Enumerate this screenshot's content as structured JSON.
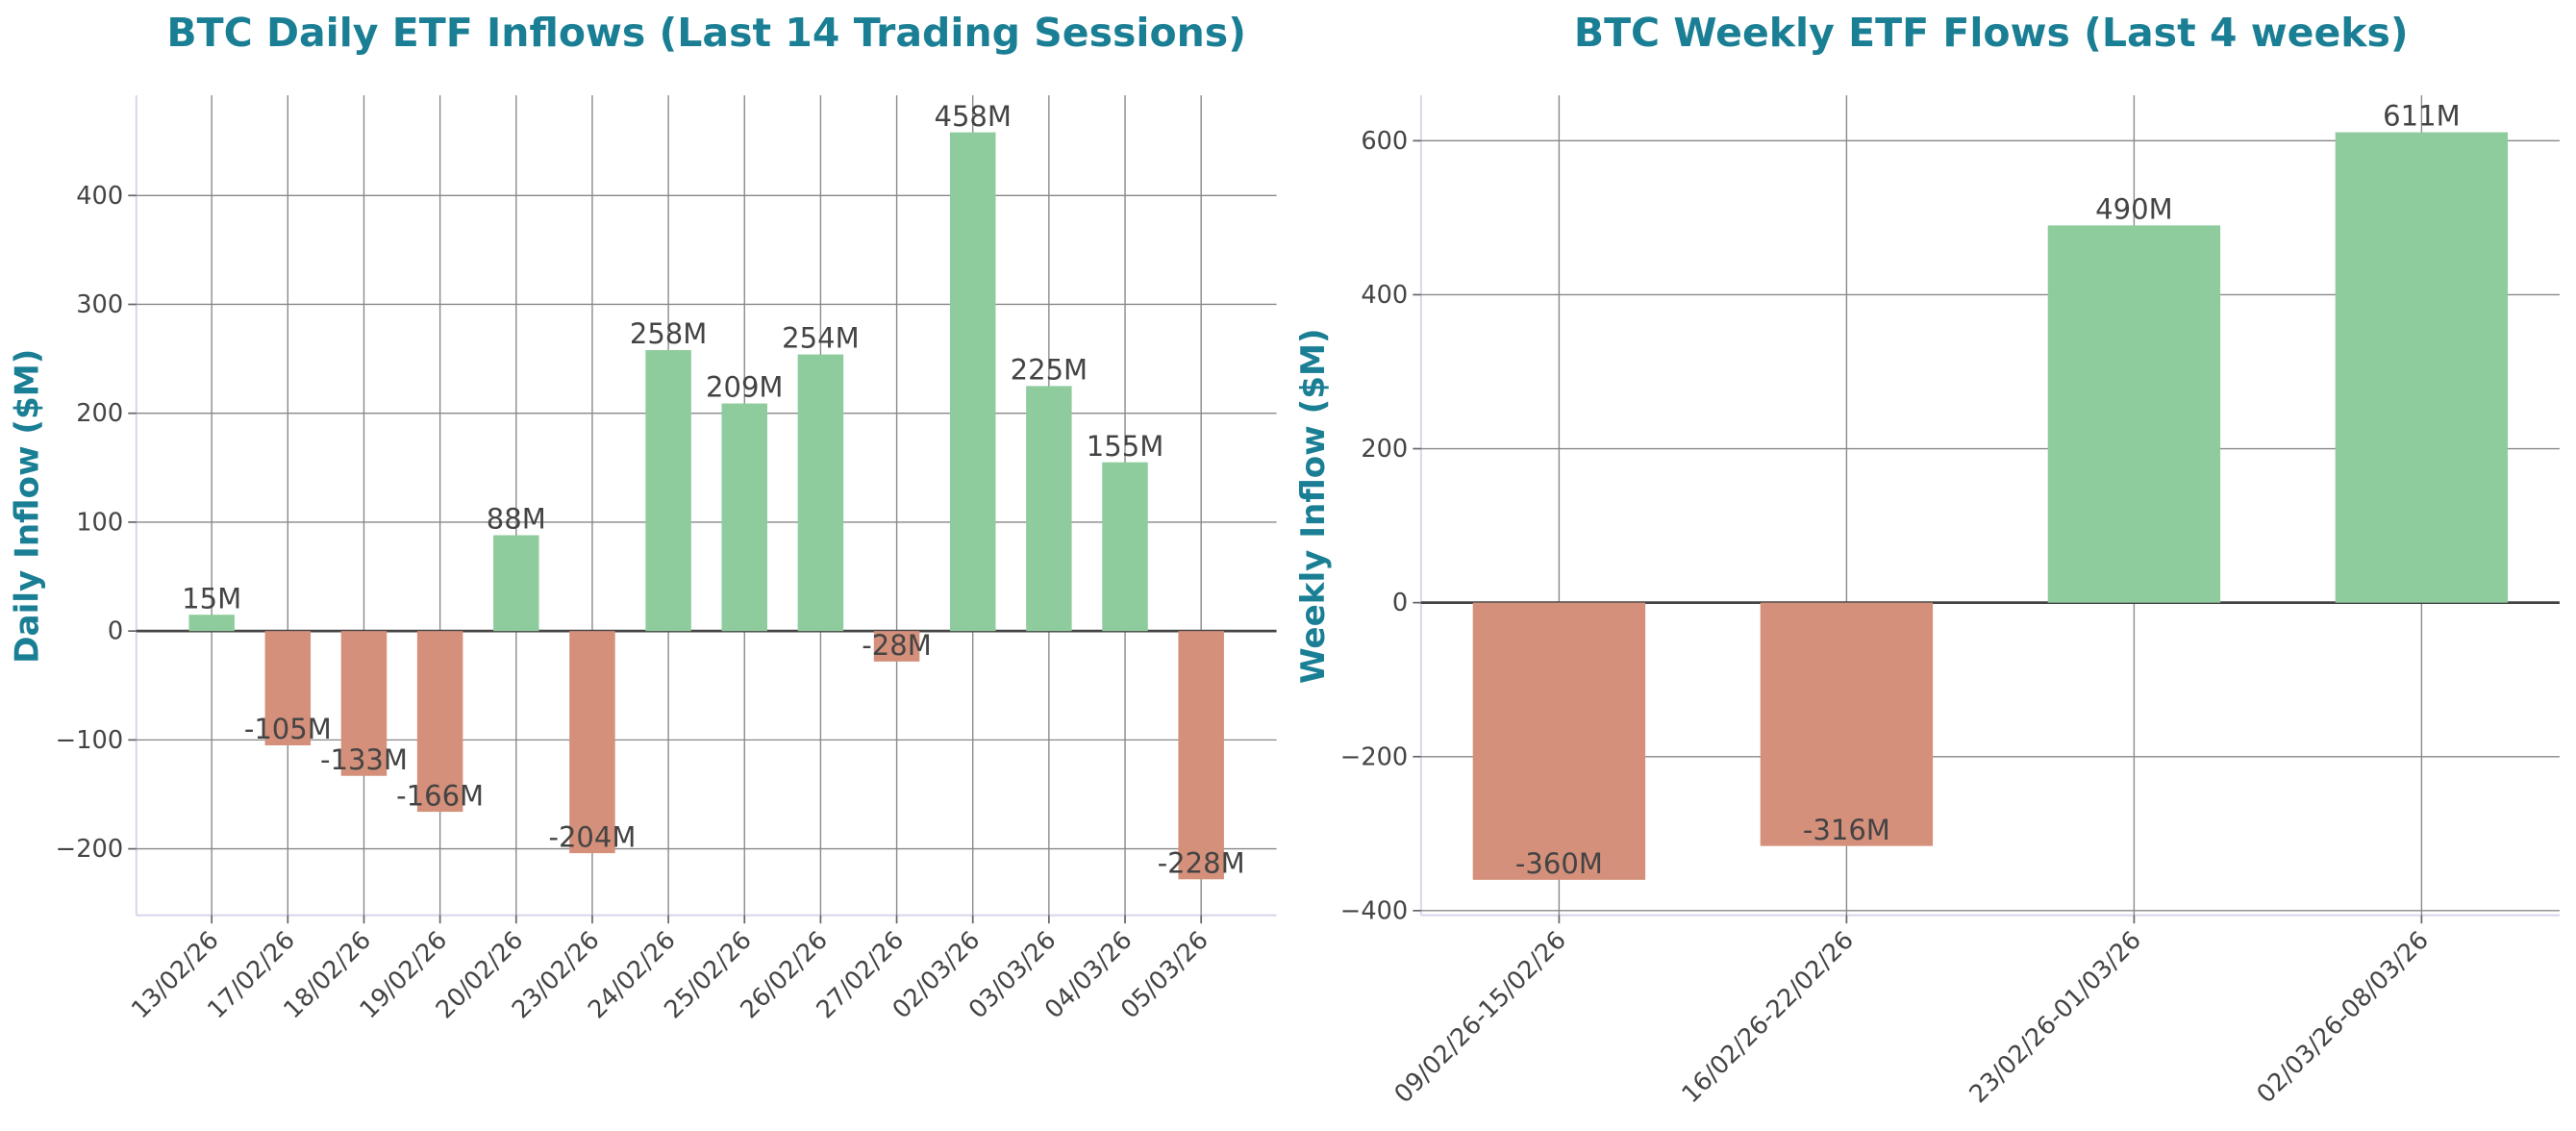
{
  "chart_data": [
    {
      "type": "bar",
      "title": "BTC Daily ETF Inflows (Last 14 Trading Sessions)",
      "ylabel": "Daily Inflow ($M)",
      "categories": [
        "13/02/26",
        "17/02/26",
        "18/02/26",
        "19/02/26",
        "20/02/26",
        "23/02/26",
        "24/02/26",
        "25/02/26",
        "26/02/26",
        "27/02/26",
        "02/03/26",
        "03/03/26",
        "04/03/26",
        "05/03/26"
      ],
      "values": [
        15,
        -105,
        -133,
        -166,
        88,
        -204,
        258,
        209,
        254,
        -28,
        458,
        225,
        155,
        -228
      ],
      "value_labels": [
        "15M",
        "-105M",
        "-133M",
        "-166M",
        "88M",
        "-204M",
        "258M",
        "209M",
        "254M",
        "-28M",
        "458M",
        "225M",
        "155M",
        "-228M"
      ],
      "positive_color": "#8fcc9d",
      "negative_color": "#d4907a",
      "ylim": [
        -261,
        492
      ],
      "yticks": [
        {
          "value": -200,
          "label": "−200"
        },
        {
          "value": -100,
          "label": "−100"
        },
        0,
        100,
        200,
        300,
        400
      ],
      "grid": true
    },
    {
      "type": "bar",
      "title": "BTC Weekly ETF Flows (Last 4 weeks)",
      "ylabel": "Weekly Inflow ($M)",
      "categories": [
        "09/02/26-15/02/26",
        "16/02/26-22/02/26",
        "23/02/26-01/03/26",
        "02/03/26-08/03/26"
      ],
      "values": [
        -360,
        -316,
        490,
        611
      ],
      "value_labels": [
        "-360M",
        "-316M",
        "490M",
        "611M"
      ],
      "positive_color": "#8fcc9d",
      "negative_color": "#d4907a",
      "ylim": [
        -406,
        659
      ],
      "yticks": [
        {
          "value": -400,
          "label": "−400"
        },
        {
          "value": -200,
          "label": "−200"
        },
        0,
        200,
        400,
        600
      ],
      "grid": true
    }
  ]
}
